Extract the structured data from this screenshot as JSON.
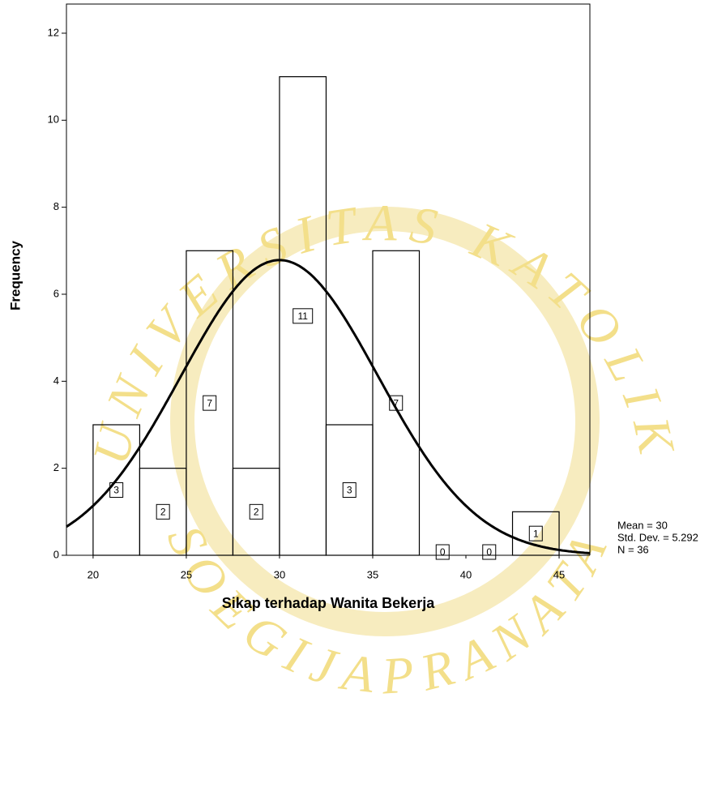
{
  "chart_data": {
    "type": "histogram",
    "x_label": "Sikap terhadap Wanita Bekerja",
    "y_label": "Frequency",
    "bins": [
      20,
      22.5,
      25,
      27.5,
      30,
      32.5,
      35,
      37.5,
      40,
      42.5,
      45
    ],
    "counts": [
      3,
      2,
      7,
      2,
      11,
      3,
      7,
      0,
      0,
      1
    ],
    "xlim": [
      18.57,
      46.65
    ],
    "ylim": [
      0,
      12.67
    ],
    "xticks": [
      20,
      25,
      30,
      35,
      40,
      45
    ],
    "yticks": [
      0,
      2,
      4,
      6,
      8,
      10,
      12
    ],
    "stats": [
      {
        "value": 30,
        "label": "Mean = 30"
      },
      {
        "value": 5.292,
        "label": "Std. Dev. = 5.292"
      },
      {
        "value": 36,
        "label": "N = 36"
      }
    ],
    "normal_curve": true,
    "watermark": [
      "UNIVERSITAS KATOLIK",
      "SOEGIJAPRANATA"
    ]
  }
}
